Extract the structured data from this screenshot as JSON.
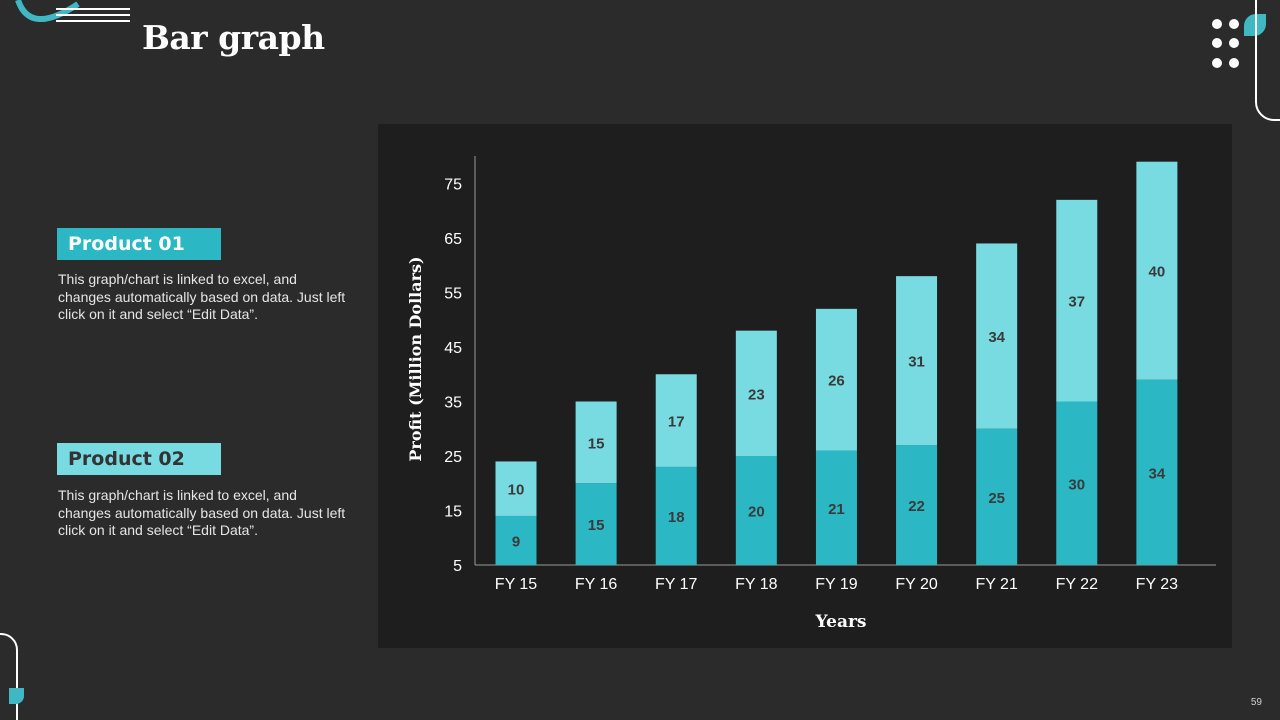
{
  "title": "Bar graph",
  "colors": {
    "background": "#2b2b2b",
    "panel": "#1e1e1e",
    "product01": "#2bb8c4",
    "product02": "#79dbe2",
    "text": "#ffffff"
  },
  "legend": [
    {
      "label": "Product 01",
      "description": "This graph/chart is linked to excel, and changes automatically based on data. Just left click on it and select “Edit Data”."
    },
    {
      "label": "Product 02",
      "description": "This graph/chart is linked to excel, and changes automatically based on data. Just left click on it and select “Edit Data”."
    }
  ],
  "page_number": "59",
  "chart_data": {
    "type": "bar",
    "stacked": true,
    "categories": [
      "FY 15",
      "FY 16",
      "FY 17",
      "FY 18",
      "FY 19",
      "FY 20",
      "FY 21",
      "FY 22",
      "FY 23"
    ],
    "series": [
      {
        "name": "Product 01",
        "values": [
          9,
          15,
          18,
          20,
          21,
          22,
          25,
          30,
          34
        ]
      },
      {
        "name": "Product 02",
        "values": [
          10,
          15,
          17,
          23,
          26,
          31,
          34,
          37,
          40
        ]
      }
    ],
    "title": "",
    "xlabel": "Years",
    "ylabel": "Profit  (Million Dollars)",
    "ylim": [
      5,
      80
    ],
    "yticks": [
      5,
      15,
      25,
      35,
      45,
      55,
      65,
      75
    ],
    "grid": false
  }
}
